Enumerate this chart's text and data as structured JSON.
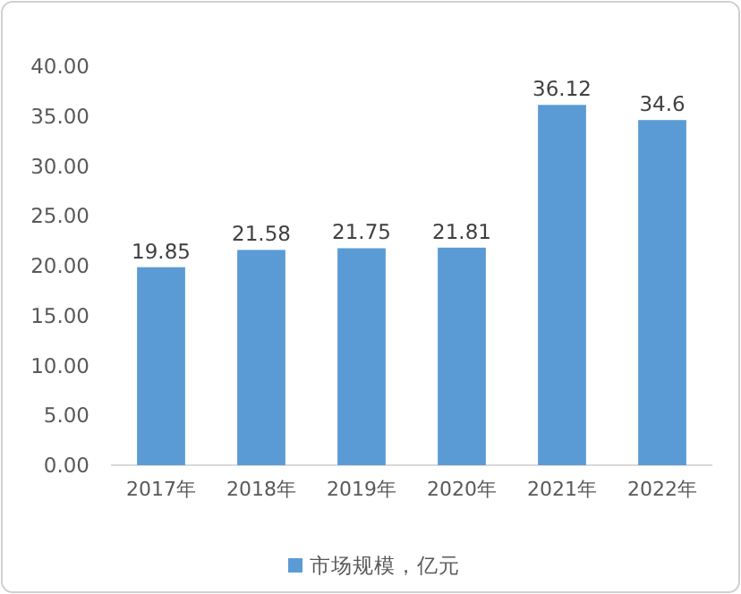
{
  "chart_data": {
    "type": "bar",
    "categories": [
      "2017年",
      "2018年",
      "2019年",
      "2020年",
      "2021年",
      "2022年"
    ],
    "series": [
      {
        "name": "市场规模，亿元",
        "color": "#5b9bd5",
        "values": [
          19.85,
          21.58,
          21.75,
          21.81,
          36.12,
          34.6
        ]
      }
    ],
    "ylim": [
      0,
      40
    ],
    "yticks": [
      {
        "value": 0,
        "label": "0.00"
      },
      {
        "value": 5,
        "label": "5.00"
      },
      {
        "value": 10,
        "label": "10.00"
      },
      {
        "value": 15,
        "label": "15.00"
      },
      {
        "value": 20,
        "label": "20.00"
      },
      {
        "value": 25,
        "label": "25.00"
      },
      {
        "value": 30,
        "label": "30.00"
      },
      {
        "value": 35,
        "label": "35.00"
      },
      {
        "value": 40,
        "label": "40.00"
      }
    ],
    "data_labels": true,
    "legend": "bottom"
  }
}
